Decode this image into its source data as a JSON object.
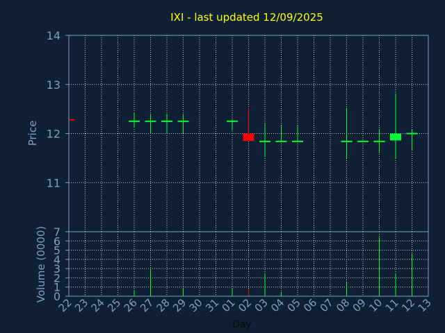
{
  "chart_data": [
    {
      "type": "candlestick",
      "title": "IXI - last updated 12/09/2025",
      "ylabel": "Price",
      "ylim": [
        10.0,
        14.0
      ],
      "yticks": [
        11,
        12,
        13,
        14
      ],
      "categories": [
        "22",
        "23",
        "24",
        "25",
        "26",
        "27",
        "28",
        "29",
        "30",
        "31",
        "01",
        "02",
        "03",
        "04",
        "05",
        "06",
        "07",
        "08",
        "09",
        "10",
        "11",
        "12",
        "13"
      ],
      "grid": true,
      "candles": [
        {
          "day": "22",
          "open": 12.28,
          "close": 12.26,
          "high": 12.28,
          "low": 12.26
        },
        {
          "day": "26",
          "open": 12.25,
          "close": 12.25,
          "high": 12.42,
          "low": 12.12
        },
        {
          "day": "27",
          "open": 12.25,
          "close": 12.25,
          "high": 12.4,
          "low": 12.0
        },
        {
          "day": "28",
          "open": 12.25,
          "close": 12.25,
          "high": 12.4,
          "low": 12.0
        },
        {
          "day": "29",
          "open": 12.25,
          "close": 12.25,
          "high": 12.4,
          "low": 12.0
        },
        {
          "day": "01",
          "open": 12.25,
          "close": 12.25,
          "high": 12.28,
          "low": 12.06
        },
        {
          "day": "02",
          "open": 12.0,
          "close": 11.85,
          "high": 12.52,
          "low": 11.85
        },
        {
          "day": "03",
          "open": 11.84,
          "close": 11.84,
          "high": 12.2,
          "low": 11.52
        },
        {
          "day": "04",
          "open": 11.84,
          "close": 11.84,
          "high": 12.16,
          "low": 11.84
        },
        {
          "day": "05",
          "open": 11.84,
          "close": 11.84,
          "high": 12.16,
          "low": 11.84
        },
        {
          "day": "08",
          "open": 11.84,
          "close": 11.84,
          "high": 12.52,
          "low": 11.5
        },
        {
          "day": "09",
          "open": 11.84,
          "close": 11.84,
          "high": 11.84,
          "low": 11.84
        },
        {
          "day": "10",
          "open": 11.84,
          "close": 11.84,
          "high": 12.1,
          "low": 11.6
        },
        {
          "day": "11",
          "open": 11.86,
          "close": 12.0,
          "high": 12.82,
          "low": 11.5
        },
        {
          "day": "12",
          "open": 12.0,
          "close": 12.0,
          "high": 12.08,
          "low": 11.66
        }
      ],
      "colors": {
        "up": "#00ff33",
        "down": "#ff0000",
        "grid": "#c8c8c8",
        "axis": "#7f9fbf",
        "title": "#ffff00",
        "background": "#0f2035"
      }
    },
    {
      "type": "bar",
      "ylabel": "Volume (0000)",
      "xlabel": "Day",
      "ylim": [
        0,
        7
      ],
      "yticks": [
        0,
        1,
        2,
        3,
        4,
        5,
        6,
        7
      ],
      "categories": [
        "22",
        "23",
        "24",
        "25",
        "26",
        "27",
        "28",
        "29",
        "30",
        "31",
        "01",
        "02",
        "03",
        "04",
        "05",
        "06",
        "07",
        "08",
        "09",
        "10",
        "11",
        "12",
        "13"
      ],
      "volumes": [
        {
          "day": "26",
          "value": 0.7,
          "dir": "up"
        },
        {
          "day": "27",
          "value": 2.9,
          "dir": "up"
        },
        {
          "day": "29",
          "value": 0.9,
          "dir": "up"
        },
        {
          "day": "01",
          "value": 0.9,
          "dir": "up"
        },
        {
          "day": "02",
          "value": 0.8,
          "dir": "down"
        },
        {
          "day": "03",
          "value": 2.5,
          "dir": "up"
        },
        {
          "day": "04",
          "value": 0.5,
          "dir": "up"
        },
        {
          "day": "08",
          "value": 1.5,
          "dir": "up"
        },
        {
          "day": "10",
          "value": 6.4,
          "dir": "up"
        },
        {
          "day": "11",
          "value": 2.5,
          "dir": "up"
        },
        {
          "day": "12",
          "value": 4.6,
          "dir": "up"
        }
      ]
    }
  ]
}
